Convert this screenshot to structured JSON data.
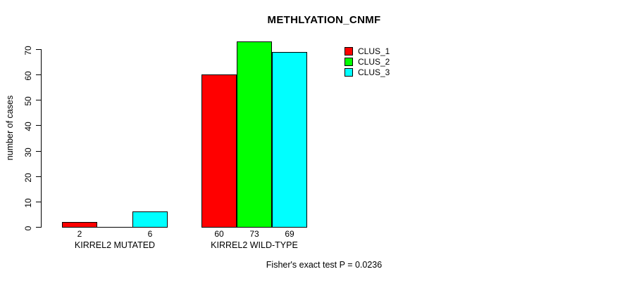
{
  "figure": {
    "background": "#ffffff",
    "text_color": "#000000"
  },
  "chart_data": {
    "type": "bar",
    "title": "METHLYATION_CNMF",
    "xlabel": "",
    "ylabel": "number of cases",
    "categories": [
      "KIRREL2 MUTATED",
      "KIRREL2 WILD-TYPE"
    ],
    "series": [
      {
        "name": "CLUS_1",
        "color": "#ff0000",
        "values": [
          2,
          60
        ]
      },
      {
        "name": "CLUS_2",
        "color": "#00ff00",
        "values": [
          0,
          73
        ]
      },
      {
        "name": "CLUS_3",
        "color": "#00ffff",
        "values": [
          6,
          69
        ]
      }
    ],
    "bar_value_labels": true,
    "show_zero_value_labels": false,
    "ylim": [
      0,
      70
    ],
    "yticks": [
      0,
      10,
      20,
      30,
      40,
      50,
      60,
      70
    ],
    "grid": false,
    "legend_position": "top-right",
    "legend_entries": [
      "CLUS_1",
      "CLUS_2",
      "CLUS_3"
    ],
    "annotation": "Fisher's exact test P = 0.0236"
  }
}
